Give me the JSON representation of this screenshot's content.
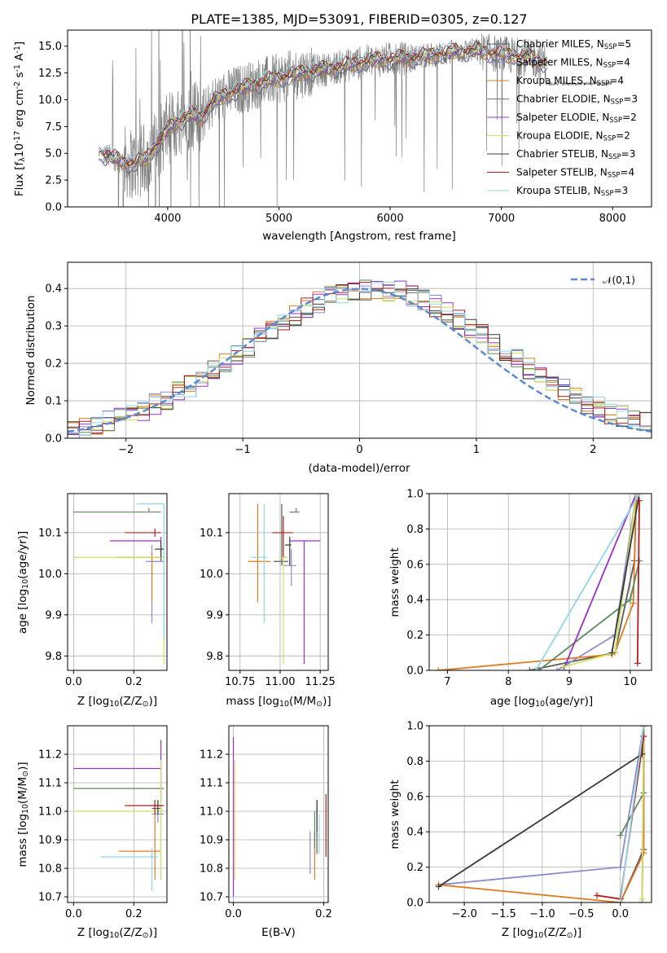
{
  "series_styles": [
    {
      "name": "Chabrier MILES, N$_{SSP}$=5",
      "color": "#5a5a5a"
    },
    {
      "name": "Salpeter MILES, N$_{SSP}$=4",
      "color": "#8b8bd0"
    },
    {
      "name": "Kroupa MILES, N$_{SSP}$=4",
      "color": "#e07b22"
    },
    {
      "name": "Chabrier ELODIE, N$_{SSP}$=3",
      "color": "#5a8a5a"
    },
    {
      "name": "Salpeter ELODIE, N$_{SSP}$=2",
      "color": "#9932cc"
    },
    {
      "name": "Kroupa ELODIE, N$_{SSP}$=2",
      "color": "#cfe05c"
    },
    {
      "name": "Chabrier STELIB, N$_{SSP}$=3",
      "color": "#3a3a3a"
    },
    {
      "name": "Salpeter STELIB, N$_{SSP}$=4",
      "color": "#b21e1e"
    },
    {
      "name": "Kroupa STELIB, N$_{SSP}$=3",
      "color": "#8fd6e6"
    }
  ],
  "chart_data": [
    {
      "type": "line",
      "id": "spectrum",
      "title": "PLATE=1385, MJD=53091, FIBERID=0305, z=0.127",
      "xlabel": "wavelength [Angstrom, rest frame]",
      "ylabel": "Flux [f$_\\lambda$10$^{-17}$ erg cm$^{-2}$ s$^{-1}$ A$^{-1}$]",
      "xlim": [
        3100,
        8350
      ],
      "ylim": [
        0,
        16.5
      ],
      "xticks": [
        4000,
        5000,
        6000,
        7000,
        8000
      ],
      "yticks": [
        0.0,
        2.5,
        5.0,
        7.5,
        10.0,
        12.5,
        15.0
      ],
      "grid": false,
      "legend": "right",
      "data_color": "#808080",
      "continuum": {
        "x": [
          3400,
          3500,
          3600,
          3700,
          3800,
          3900,
          4000,
          4100,
          4200,
          4300,
          4400,
          4600,
          4800,
          5000,
          5200,
          5400,
          5600,
          5800,
          6000,
          6200,
          6400,
          6600,
          6800,
          7000,
          7200,
          7400
        ],
        "y": [
          5.0,
          4.6,
          4.2,
          4.0,
          4.5,
          5.8,
          7.2,
          8.0,
          8.6,
          8.3,
          9.8,
          10.8,
          11.5,
          12.0,
          12.5,
          12.8,
          13.2,
          13.6,
          13.8,
          13.9,
          14.2,
          14.5,
          14.6,
          14.2,
          14.0,
          13.5
        ]
      }
    },
    {
      "type": "histogram",
      "id": "residuals",
      "xlabel": "(data-model)/error",
      "ylabel": "Normed distribution",
      "xlim": [
        -2.5,
        2.5
      ],
      "ylim": [
        0,
        0.47
      ],
      "xticks": [
        -2,
        -1,
        0,
        1,
        2
      ],
      "yticks": [
        0.0,
        0.1,
        0.2,
        0.3,
        0.4
      ],
      "grid": true,
      "legend": "top-right",
      "gaussian_label": "$\\mathcal{N}(0,1)$",
      "gaussian_color": "#5b8bd0",
      "bin_width": 0.1
    },
    {
      "type": "scatter",
      "id": "age-vs-z",
      "xlabel": "Z [log$_{10}$(Z/Z$_\\odot$)]",
      "ylabel": "age  [log$_{10}$(age/yr)]",
      "xlim": [
        -0.02,
        0.31
      ],
      "ylim": [
        9.765,
        10.195
      ],
      "xticks": [
        0.0,
        0.2
      ],
      "yticks": [
        9.8,
        9.9,
        10.0,
        10.1
      ],
      "grid": true,
      "points": [
        {
          "s": 0,
          "x": 0.29,
          "y": 10.04,
          "xerr": [
            0.0,
            0.0
          ],
          "yerr": [
            0.01,
            0.03
          ]
        },
        {
          "s": 1,
          "x": 0.26,
          "y": 10.03,
          "xerr": [
            0.02,
            0.04
          ],
          "yerr": [
            0.15,
            0.04
          ]
        },
        {
          "s": 2,
          "x": 0.26,
          "y": 10.04,
          "xerr": [
            0.12,
            0.03
          ],
          "yerr": [
            0.11,
            0.01
          ]
        },
        {
          "s": 3,
          "x": 0.25,
          "y": 10.15,
          "xerr": [
            0.25,
            0.04
          ],
          "yerr": [
            0.0,
            0.01
          ]
        },
        {
          "s": 4,
          "x": 0.29,
          "y": 10.08,
          "xerr": [
            0.17,
            0.0
          ],
          "yerr": [
            0.0,
            0.01
          ]
        },
        {
          "s": 5,
          "x": 0.3,
          "y": 10.04,
          "xerr": [
            0.3,
            0.0
          ],
          "yerr": [
            0.26,
            0.03
          ]
        },
        {
          "s": 6,
          "x": 0.29,
          "y": 10.06,
          "xerr": [
            0.02,
            0.01
          ],
          "yerr": [
            0.02,
            0.02
          ]
        },
        {
          "s": 7,
          "x": 0.27,
          "y": 10.1,
          "xerr": [
            0.1,
            0.02
          ],
          "yerr": [
            0.01,
            0.01
          ]
        },
        {
          "s": 8,
          "x": 0.3,
          "y": 10.17,
          "xerr": [
            0.09,
            0.0
          ],
          "yerr": [
            0.33,
            0.0
          ]
        }
      ]
    },
    {
      "type": "scatter",
      "id": "age-vs-mass",
      "xlabel": "mass [log$_{10}$(M/M$_\\odot$)]",
      "ylabel": "",
      "xlim": [
        10.68,
        11.3
      ],
      "ylim": [
        9.765,
        10.195
      ],
      "xticks": [
        10.75,
        11.0,
        11.25
      ],
      "yticks": [
        9.8,
        9.9,
        10.0,
        10.1
      ],
      "grid": true,
      "points": [
        {
          "s": 0,
          "x": 11.01,
          "y": 10.03,
          "xerr": [
            0.05,
            0.04
          ],
          "yerr": [
            0.01,
            0.14
          ]
        },
        {
          "s": 1,
          "x": 11.07,
          "y": 10.02,
          "xerr": [
            0.05,
            0.03
          ],
          "yerr": [
            0.05,
            0.04
          ]
        },
        {
          "s": 2,
          "x": 10.86,
          "y": 10.03,
          "xerr": [
            0.06,
            0.08
          ],
          "yerr": [
            0.1,
            0.14
          ]
        },
        {
          "s": 3,
          "x": 11.1,
          "y": 10.15,
          "xerr": [
            0.04,
            0.02
          ],
          "yerr": [
            0.0,
            0.01
          ]
        },
        {
          "s": 4,
          "x": 11.15,
          "y": 10.08,
          "xerr": [
            0.09,
            0.1
          ],
          "yerr": [
            0.3,
            0.0
          ]
        },
        {
          "s": 5,
          "x": 11.02,
          "y": 10.04,
          "xerr": [
            0.03,
            0.03
          ],
          "yerr": [
            0.26,
            0.04
          ]
        },
        {
          "s": 6,
          "x": 11.06,
          "y": 10.07,
          "xerr": [
            0.03,
            0.01
          ],
          "yerr": [
            0.05,
            0.02
          ]
        },
        {
          "s": 7,
          "x": 11.02,
          "y": 10.1,
          "xerr": [
            0.07,
            0.06
          ],
          "yerr": [
            0.06,
            0.04
          ]
        },
        {
          "s": 8,
          "x": 10.9,
          "y": 10.04,
          "xerr": [
            0.08,
            0.02
          ],
          "yerr": [
            0.16,
            0.13
          ]
        }
      ]
    },
    {
      "type": "line",
      "id": "weight-vs-age",
      "xlabel": "age  [log$_{10}$(age/yr)]",
      "ylabel": "mass weight",
      "xlim": [
        6.7,
        10.35
      ],
      "ylim": [
        0,
        1.0
      ],
      "xticks": [
        7,
        8,
        9,
        10
      ],
      "yticks": [
        0.0,
        0.2,
        0.4,
        0.6,
        0.8,
        1.0
      ],
      "grid": true,
      "series": [
        {
          "s": 0,
          "x": [
            8.35,
            9.75,
            10.07,
            10.1
          ],
          "y": [
            0.0,
            0.1,
            0.62,
            1.0
          ]
        },
        {
          "s": 1,
          "x": [
            8.8,
            9.75,
            10.1
          ],
          "y": [
            0.0,
            0.2,
            1.0
          ]
        },
        {
          "s": 2,
          "x": [
            6.85,
            9.7,
            9.75,
            10.05,
            10.1
          ],
          "y": [
            0.0,
            0.09,
            0.1,
            0.38,
            1.0
          ]
        },
        {
          "s": 3,
          "x": [
            8.5,
            10.0,
            10.15
          ],
          "y": [
            0.0,
            0.4,
            0.62
          ]
        },
        {
          "s": 4,
          "x": [
            8.9,
            10.1
          ],
          "y": [
            0.0,
            1.0
          ]
        },
        {
          "s": 5,
          "x": [
            8.9,
            9.75,
            10.1
          ],
          "y": [
            0.02,
            0.1,
            1.0
          ]
        },
        {
          "s": 6,
          "x": [
            9.7,
            10.15
          ],
          "y": [
            0.1,
            1.0
          ]
        },
        {
          "s": 7,
          "x": [
            10.12,
            10.15
          ],
          "y": [
            0.04,
            0.96
          ]
        },
        {
          "s": 8,
          "x": [
            8.45,
            10.15
          ],
          "y": [
            0.0,
            1.0
          ]
        }
      ]
    },
    {
      "type": "scatter",
      "id": "mass-vs-z",
      "xlabel": "Z [log$_{10}$(Z/Z$_\\odot$)]",
      "ylabel": "mass [log$_{10}$(M/M$_\\odot$)]",
      "xlim": [
        -0.02,
        0.31
      ],
      "ylim": [
        10.68,
        11.3
      ],
      "xticks": [
        0.0,
        0.2
      ],
      "yticks": [
        10.7,
        10.8,
        10.9,
        11.0,
        11.1,
        11.2
      ],
      "grid": true,
      "points": [
        {
          "s": 0,
          "x": 0.29,
          "y": 11.01,
          "xerr": [
            0.03,
            0.0
          ],
          "yerr": [
            0.02,
            0.01
          ]
        },
        {
          "s": 1,
          "x": 0.28,
          "y": 10.99,
          "xerr": [
            0.02,
            0.02
          ],
          "yerr": [
            0.03,
            0.03
          ]
        },
        {
          "s": 2,
          "x": 0.27,
          "y": 10.86,
          "xerr": [
            0.12,
            0.02
          ],
          "yerr": [
            0.1,
            0.13
          ]
        },
        {
          "s": 3,
          "x": 0.25,
          "y": 11.08,
          "xerr": [
            0.25,
            0.05
          ],
          "yerr": [
            0.0,
            0.0
          ]
        },
        {
          "s": 4,
          "x": 0.29,
          "y": 11.15,
          "xerr": [
            0.29,
            0.0
          ],
          "yerr": [
            0.12,
            0.1
          ]
        },
        {
          "s": 5,
          "x": 0.29,
          "y": 11.0,
          "xerr": [
            0.29,
            0.01
          ],
          "yerr": [
            0.24,
            0.18
          ]
        },
        {
          "s": 6,
          "x": 0.28,
          "y": 11.02,
          "xerr": [
            0.02,
            0.01
          ],
          "yerr": [
            0.03,
            0.02
          ]
        },
        {
          "s": 7,
          "x": 0.27,
          "y": 11.02,
          "xerr": [
            0.1,
            0.03
          ],
          "yerr": [
            0.03,
            0.02
          ]
        },
        {
          "s": 8,
          "x": 0.26,
          "y": 10.84,
          "xerr": [
            0.17,
            0.02
          ],
          "yerr": [
            0.12,
            0.03
          ]
        }
      ]
    },
    {
      "type": "scatter",
      "id": "mass-vs-ebv",
      "xlabel": "E(B-V)",
      "ylabel": "",
      "xlim": [
        -0.01,
        0.21
      ],
      "ylim": [
        10.68,
        11.3
      ],
      "xticks": [
        0.0,
        0.2
      ],
      "yticks": [
        10.7,
        10.8,
        10.9,
        11.0,
        11.1,
        11.2
      ],
      "grid": true,
      "points": [
        {
          "s": 0,
          "x": 0.185,
          "y": 10.95,
          "xerr": [
            0.0,
            0.0
          ],
          "yerr": [
            0.1,
            0.09
          ]
        },
        {
          "s": 1,
          "x": 0.17,
          "y": 10.88,
          "xerr": [
            0.0,
            0.0
          ],
          "yerr": [
            0.1,
            0.05
          ]
        },
        {
          "s": 2,
          "x": 0.18,
          "y": 10.89,
          "xerr": [
            0.0,
            0.0
          ],
          "yerr": [
            0.13,
            0.04
          ]
        },
        {
          "s": 3,
          "x": 0.18,
          "y": 10.95,
          "xerr": [
            0.0,
            0.0
          ],
          "yerr": [
            0.08,
            0.05
          ]
        },
        {
          "s": 4,
          "x": 0.0,
          "y": 11.16,
          "xerr": [
            0.0,
            0.0
          ],
          "yerr": [
            0.46,
            0.1
          ]
        },
        {
          "s": 5,
          "x": 0.003,
          "y": 11.03,
          "xerr": [
            0.0,
            0.0
          ],
          "yerr": [
            0.27,
            0.15
          ]
        },
        {
          "s": 6,
          "x": 0.185,
          "y": 10.98,
          "xerr": [
            0.0,
            0.0
          ],
          "yerr": [
            0.05,
            0.06
          ]
        },
        {
          "s": 7,
          "x": 0.205,
          "y": 10.95,
          "xerr": [
            0.0,
            0.0
          ],
          "yerr": [
            0.11,
            0.11
          ]
        },
        {
          "s": 8,
          "x": 0.19,
          "y": 10.93,
          "xerr": [
            0.0,
            0.0
          ],
          "yerr": [
            0.08,
            0.06
          ]
        }
      ]
    },
    {
      "type": "line",
      "id": "weight-vs-z",
      "xlabel": "Z [log$_{10}$(Z/Z$_\\odot$)]",
      "ylabel": "mass weight",
      "xlim": [
        -2.45,
        0.4
      ],
      "ylim": [
        0,
        1.0
      ],
      "xticks": [
        -2.0,
        -1.5,
        -1.0,
        -0.5,
        0.0
      ],
      "yticks": [
        0.0,
        0.2,
        0.4,
        0.6,
        0.8,
        1.0
      ],
      "grid": true,
      "series": [
        {
          "s": 0,
          "x": [
            0.0,
            0.3,
            0.3
          ],
          "y": [
            0.0,
            0.3,
            1.0
          ]
        },
        {
          "s": 1,
          "x": [
            -2.33,
            0.0,
            0.3
          ],
          "y": [
            0.1,
            0.2,
            1.0
          ]
        },
        {
          "s": 2,
          "x": [
            -2.33,
            0.0,
            0.3,
            0.3
          ],
          "y": [
            0.1,
            0.0,
            0.28,
            1.0
          ]
        },
        {
          "s": 3,
          "x": [
            0.0,
            0.3
          ],
          "y": [
            0.38,
            0.62
          ]
        },
        {
          "s": 4,
          "x": [
            0.28,
            0.3
          ],
          "y": [
            0.0,
            1.0
          ]
        },
        {
          "s": 5,
          "x": [
            0.28,
            0.3
          ],
          "y": [
            0.02,
            1.0
          ]
        },
        {
          "s": 6,
          "x": [
            -2.33,
            0.28,
            0.3
          ],
          "y": [
            0.09,
            0.84,
            1.0
          ]
        },
        {
          "s": 7,
          "x": [
            -0.3,
            0.0,
            0.3
          ],
          "y": [
            0.04,
            0.02,
            0.94
          ]
        },
        {
          "s": 8,
          "x": [
            0.0,
            0.3
          ],
          "y": [
            0.0,
            1.0
          ]
        }
      ]
    }
  ]
}
